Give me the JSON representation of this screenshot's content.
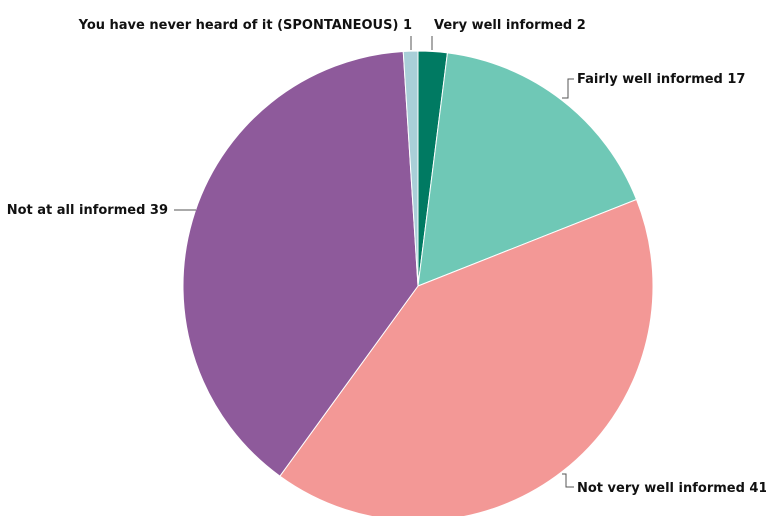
{
  "chart_data": {
    "type": "pie",
    "title": "",
    "slices": [
      {
        "label": "Very well informed",
        "value": 2,
        "color": "#007a62"
      },
      {
        "label": "Fairly well informed",
        "value": 17,
        "color": "#6fc8b6"
      },
      {
        "label": "Not very well informed",
        "value": 41,
        "color": "#f39896"
      },
      {
        "label": "Not at all informed",
        "value": 39,
        "color": "#8e5a9b"
      },
      {
        "label": "You have never heard of it (SPONTANEOUS)",
        "value": 1,
        "color": "#a9cfd8"
      }
    ],
    "start": "top",
    "direction": "clockwise"
  }
}
